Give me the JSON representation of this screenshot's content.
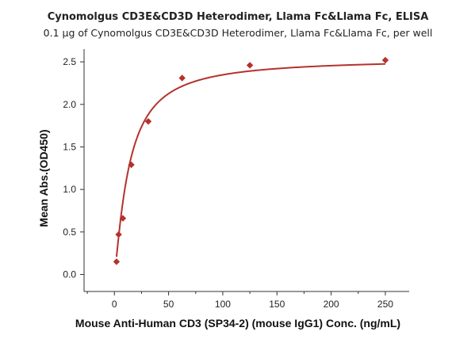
{
  "chart_data": {
    "type": "scatter",
    "title": "Cynomolgus CD3E&CD3D Heterodimer, Llama Fc&Llama Fc, ELISA",
    "subtitle": "0.1 µg of Cynomolgus CD3E&CD3D Heterodimer, Llama Fc&Llama Fc, per well",
    "xlabel": "Mouse Anti-Human CD3 (SP34-2) (mouse IgG1) Conc. (ng/mL)",
    "ylabel": "Mean Abs.(OD450)",
    "xlim": [
      -28,
      272
    ],
    "ylim": [
      -0.2,
      2.65
    ],
    "xticks": [
      0,
      50,
      100,
      150,
      200,
      250
    ],
    "yticks": [
      0.0,
      0.5,
      1.0,
      1.5,
      2.0,
      2.5
    ],
    "xtick_labels": [
      "0",
      "50",
      "100",
      "150",
      "200",
      "250"
    ],
    "ytick_labels": [
      "0.0",
      "0.5",
      "1.0",
      "1.5",
      "2.0",
      "2.5"
    ],
    "grid": false,
    "legend": "none",
    "color": "#b5322c",
    "series": [
      {
        "points": [
          {
            "x": 1.95,
            "y": 0.15
          },
          {
            "x": 3.9,
            "y": 0.47
          },
          {
            "x": 7.8,
            "y": 0.66
          },
          {
            "x": 15.6,
            "y": 1.29
          },
          {
            "x": 31.25,
            "y": 1.8
          },
          {
            "x": 62.5,
            "y": 2.31
          },
          {
            "x": 125,
            "y": 2.46
          },
          {
            "x": 250,
            "y": 2.52
          }
        ],
        "fit": {
          "model": "4PL",
          "bottom": 0.0,
          "top": 2.54,
          "ec50": 13.5,
          "hill": 1.25
        }
      }
    ]
  }
}
